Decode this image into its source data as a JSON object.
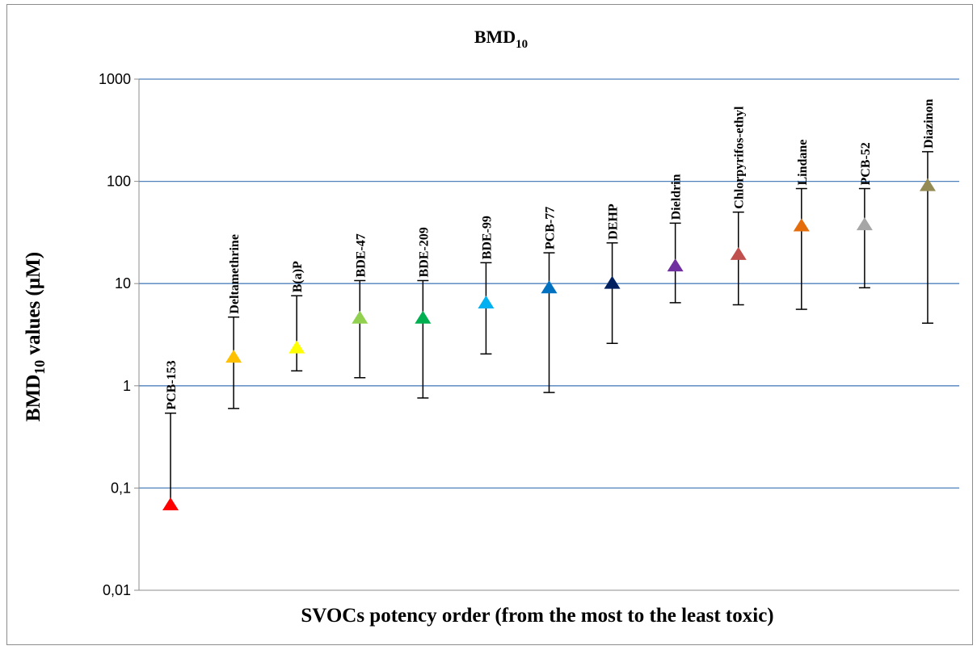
{
  "chart_data": {
    "type": "scatter",
    "title": "BMD",
    "title_sub": "10",
    "ylabel_main": "BMD",
    "ylabel_sub": "10",
    "ylabel_rest": " values (µM)",
    "xlabel": "SVOCs potency order (from the most to the least toxic)",
    "y_scale": "log",
    "ylim": [
      0.01,
      1000
    ],
    "y_ticks": [
      {
        "value": 0.01,
        "label": "0,01"
      },
      {
        "value": 0.1,
        "label": "0,1"
      },
      {
        "value": 1,
        "label": "1"
      },
      {
        "value": 10,
        "label": "10"
      },
      {
        "value": 100,
        "label": "100"
      },
      {
        "value": 1000,
        "label": "1000"
      }
    ],
    "grid": true,
    "marker": "triangle",
    "categories": [
      "PCB-153",
      "Deltamethrine",
      "B(a)P",
      "BDE-47",
      "BDE-209",
      "BDE-99",
      "PCB-77",
      "DEHP",
      "Dieldrin",
      "Chlorpyrifos-ethyl",
      "Lindane",
      "PCB-52",
      "Diazinon"
    ],
    "values": [
      0.07,
      1.95,
      2.4,
      4.7,
      4.7,
      6.6,
      9.3,
      10.3,
      15.2,
      19.7,
      37.5,
      38.5,
      93
    ],
    "lower": [
      0.07,
      0.6,
      1.4,
      1.2,
      0.76,
      2.05,
      0.86,
      2.6,
      6.5,
      6.2,
      5.6,
      9.1,
      4.1
    ],
    "upper": [
      0.54,
      4.7,
      7.6,
      10.7,
      10.7,
      16,
      20,
      25,
      39,
      50,
      85,
      85,
      195
    ],
    "colors": [
      "#ff0000",
      "#ffc000",
      "#ffff00",
      "#92d050",
      "#00b050",
      "#00b0f0",
      "#0070c0",
      "#002060",
      "#7030a0",
      "#c0504d",
      "#e46c0a",
      "#a6a6a6",
      "#948a54"
    ],
    "gridline_color": "#4f81bd"
  }
}
